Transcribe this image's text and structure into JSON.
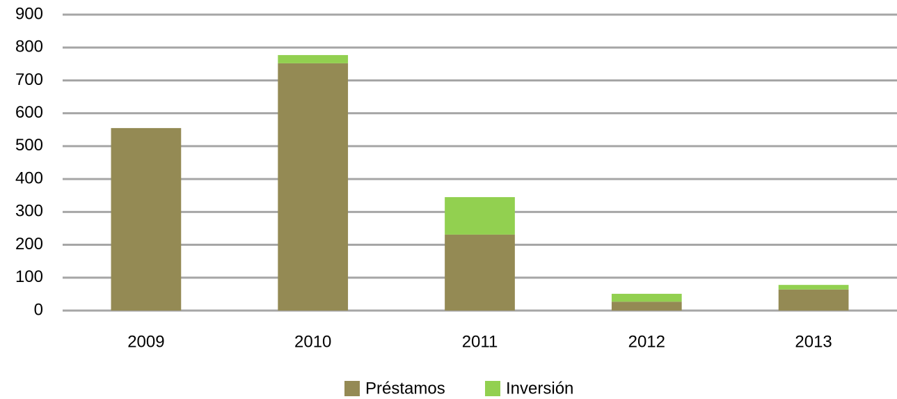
{
  "chart_data": {
    "type": "stacked_bar",
    "categories": [
      "2009",
      "2010",
      "2011",
      "2012",
      "2013"
    ],
    "series": [
      {
        "name": "Préstamos",
        "color": "#948a54",
        "values": [
          555,
          752,
          231,
          27,
          64
        ]
      },
      {
        "name": "Inversión",
        "color": "#92d050",
        "values": [
          0,
          25,
          114,
          24,
          14
        ]
      }
    ],
    "ylim": [
      0,
      900
    ],
    "yticks": [
      0,
      100,
      200,
      300,
      400,
      500,
      600,
      700,
      800,
      900
    ],
    "grid": true,
    "legend": "bottom"
  }
}
